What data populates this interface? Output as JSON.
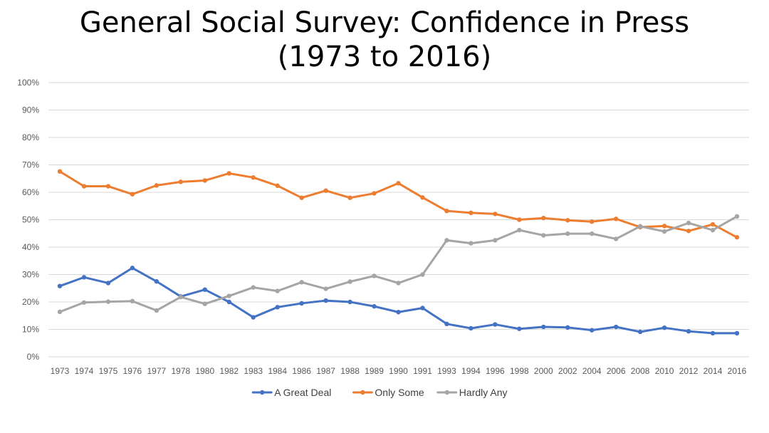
{
  "chart_data": {
    "type": "line",
    "title_line1": "General Social Survey: Confidence in Press",
    "title_line2": "(1973 to 2016)",
    "xlabel": "",
    "ylabel": "",
    "ylim": [
      0,
      100
    ],
    "y_ticks": [
      "0%",
      "10%",
      "20%",
      "30%",
      "40%",
      "50%",
      "60%",
      "70%",
      "80%",
      "90%",
      "100%"
    ],
    "categories": [
      "1973",
      "1974",
      "1975",
      "1976",
      "1977",
      "1978",
      "1980",
      "1982",
      "1983",
      "1984",
      "1986",
      "1987",
      "1988",
      "1989",
      "1990",
      "1991",
      "1993",
      "1994",
      "1996",
      "1998",
      "2000",
      "2002",
      "2004",
      "2006",
      "2008",
      "2010",
      "2012",
      "2014",
      "2016"
    ],
    "series": [
      {
        "name": "A Great Deal",
        "color": "#4472C4",
        "values": [
          25.8,
          29.0,
          26.9,
          32.4,
          27.5,
          22.0,
          24.5,
          20.0,
          14.4,
          18.1,
          19.5,
          20.5,
          20.0,
          18.4,
          16.3,
          17.8,
          12.0,
          10.4,
          11.8,
          10.2,
          10.9,
          10.7,
          9.7,
          10.9,
          9.1,
          10.6,
          9.3,
          8.6,
          8.6
        ]
      },
      {
        "name": "Only Some",
        "color": "#ED7D31",
        "values": [
          67.6,
          62.2,
          62.2,
          59.3,
          62.5,
          63.8,
          64.3,
          66.9,
          65.4,
          62.4,
          58.0,
          60.6,
          58.0,
          59.6,
          63.3,
          58.1,
          53.2,
          52.5,
          52.1,
          50.0,
          50.6,
          49.8,
          49.3,
          50.3,
          47.3,
          47.7,
          45.9,
          48.3,
          43.6
        ]
      },
      {
        "name": "Hardly Any",
        "color": "#A5A5A5",
        "values": [
          16.4,
          19.8,
          20.1,
          20.3,
          16.9,
          21.8,
          19.3,
          22.2,
          25.3,
          24.0,
          27.2,
          24.8,
          27.4,
          29.5,
          26.9,
          30.0,
          42.5,
          41.4,
          42.5,
          46.2,
          44.3,
          44.9,
          44.9,
          43.0,
          47.6,
          45.7,
          48.8,
          46.2,
          51.2
        ]
      }
    ],
    "legend_position": "bottom",
    "grid": true
  }
}
